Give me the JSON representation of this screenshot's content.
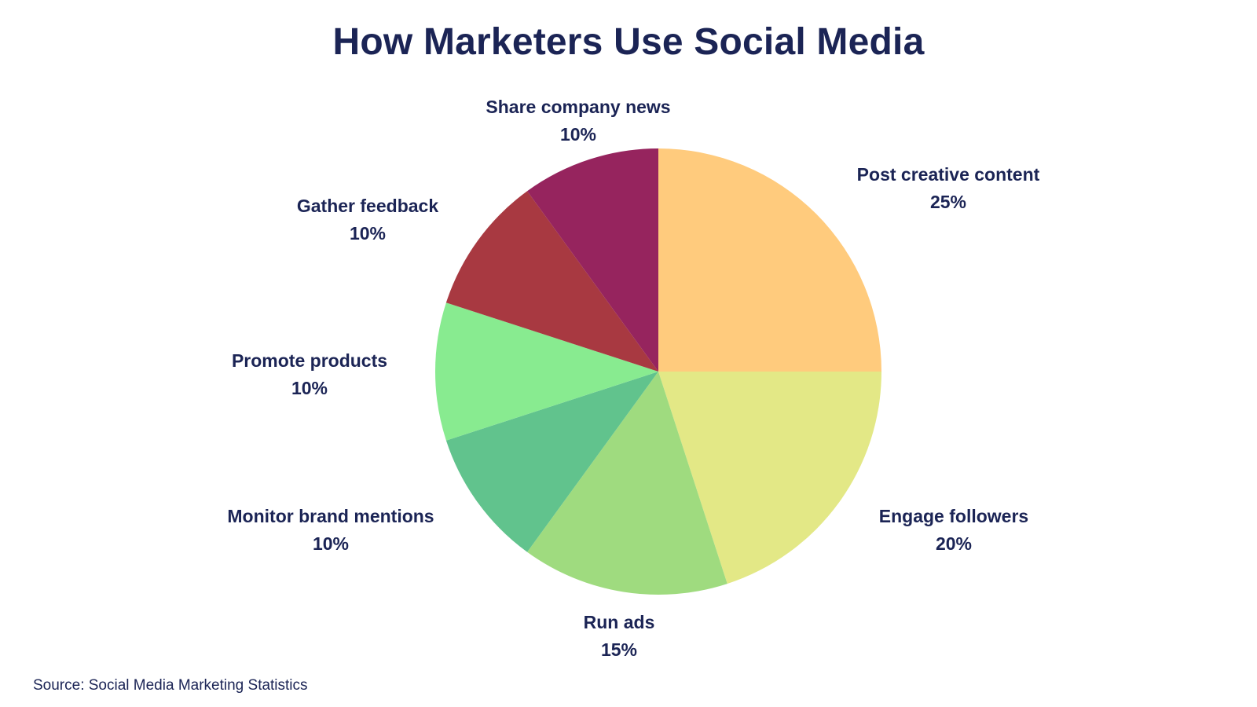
{
  "chart_data": {
    "type": "pie",
    "title": "How Marketers Use Social Media",
    "slices": [
      {
        "label": "Post creative content",
        "value": 25,
        "value_label": "25%",
        "color": "#FFCB7D"
      },
      {
        "label": "Engage followers",
        "value": 20,
        "value_label": "20%",
        "color": "#E3E886"
      },
      {
        "label": "Run ads",
        "value": 15,
        "value_label": "15%",
        "color": "#9FDB7F"
      },
      {
        "label": "Monitor brand mentions",
        "value": 10,
        "value_label": "10%",
        "color": "#61C38D"
      },
      {
        "label": "Promote products",
        "value": 10,
        "value_label": "10%",
        "color": "#88EB90"
      },
      {
        "label": "Gather feedback",
        "value": 10,
        "value_label": "10%",
        "color": "#A83941"
      },
      {
        "label": "Share company news",
        "value": 10,
        "value_label": "10%",
        "color": "#96245E"
      }
    ],
    "start_position": "12 o'clock",
    "direction": "clockwise",
    "legend": "none",
    "source": "Source: Social Media Marketing Statistics"
  }
}
